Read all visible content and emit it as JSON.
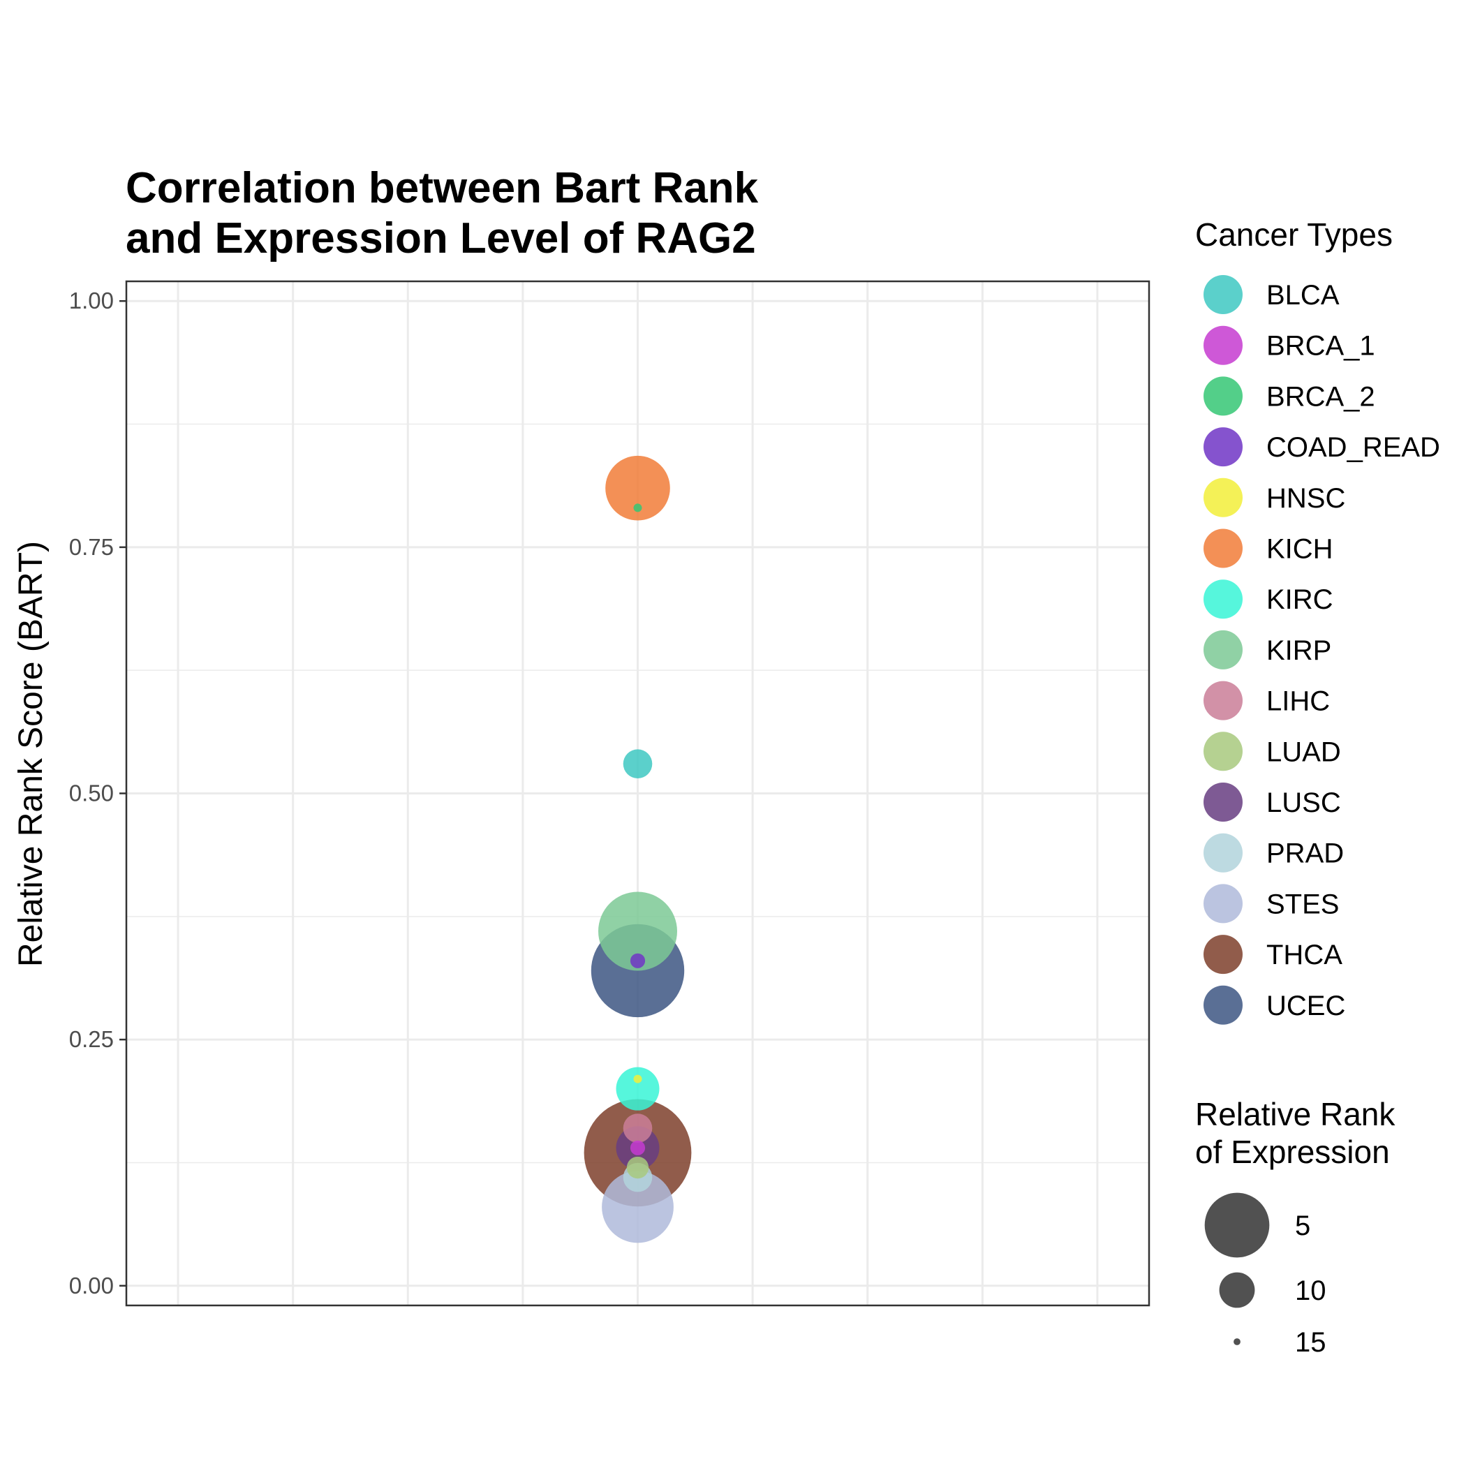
{
  "chart_data": {
    "type": "scatter",
    "title_lines": [
      "Correlation between Bart Rank",
      "and Expression Level of RAG2"
    ],
    "xlabel": "",
    "ylabel": "Relative Rank Score (BART)",
    "ylim": [
      -0.02,
      1.02
    ],
    "y_ticks": [
      0.0,
      0.25,
      0.5,
      0.75,
      1.0
    ],
    "y_tick_labels": [
      "0.00",
      "0.25",
      "0.50",
      "0.75",
      "1.00"
    ],
    "x_value": 0,
    "grid": true,
    "legend_placement": "right",
    "color_legend_title": "Cancer Types",
    "size_legend_title_lines": [
      "Relative Rank",
      "of Expression"
    ],
    "size_legend": [
      {
        "label": "5",
        "value": 5
      },
      {
        "label": "10",
        "value": 10
      },
      {
        "label": "15",
        "value": 15
      }
    ],
    "series": [
      {
        "name": "BLCA",
        "color": "#3EC8C2",
        "y": 0.53,
        "rank": 12
      },
      {
        "name": "BRCA_1",
        "color": "#C53BD0",
        "y": 0.14,
        "rank": 14
      },
      {
        "name": "BRCA_2",
        "color": "#35C774",
        "y": 0.79,
        "rank": 15
      },
      {
        "name": "COAD_READ",
        "color": "#7035C6",
        "y": 0.33,
        "rank": 14
      },
      {
        "name": "HNSC",
        "color": "#F2EF3A",
        "y": 0.21,
        "rank": 16
      },
      {
        "name": "KICH",
        "color": "#F17D38",
        "y": 0.81,
        "rank": 7
      },
      {
        "name": "KIRC",
        "color": "#38F5D6",
        "y": 0.2,
        "rank": 10
      },
      {
        "name": "KIRP",
        "color": "#7DC995",
        "y": 0.36,
        "rank": 5
      },
      {
        "name": "LIHC",
        "color": "#CA7E98",
        "y": 0.16,
        "rank": 12
      },
      {
        "name": "LUAD",
        "color": "#A8C97E",
        "y": 0.12,
        "rank": 13
      },
      {
        "name": "LUSC",
        "color": "#673D81",
        "y": 0.14,
        "rank": 10
      },
      {
        "name": "PRAD",
        "color": "#B1D4DC",
        "y": 0.11,
        "rank": 12
      },
      {
        "name": "STES",
        "color": "#AFBADB",
        "y": 0.08,
        "rank": 6
      },
      {
        "name": "THCA",
        "color": "#7E402B",
        "y": 0.135,
        "rank": 1
      },
      {
        "name": "UCEC",
        "color": "#3D5683",
        "y": 0.32,
        "rank": 3
      }
    ]
  }
}
